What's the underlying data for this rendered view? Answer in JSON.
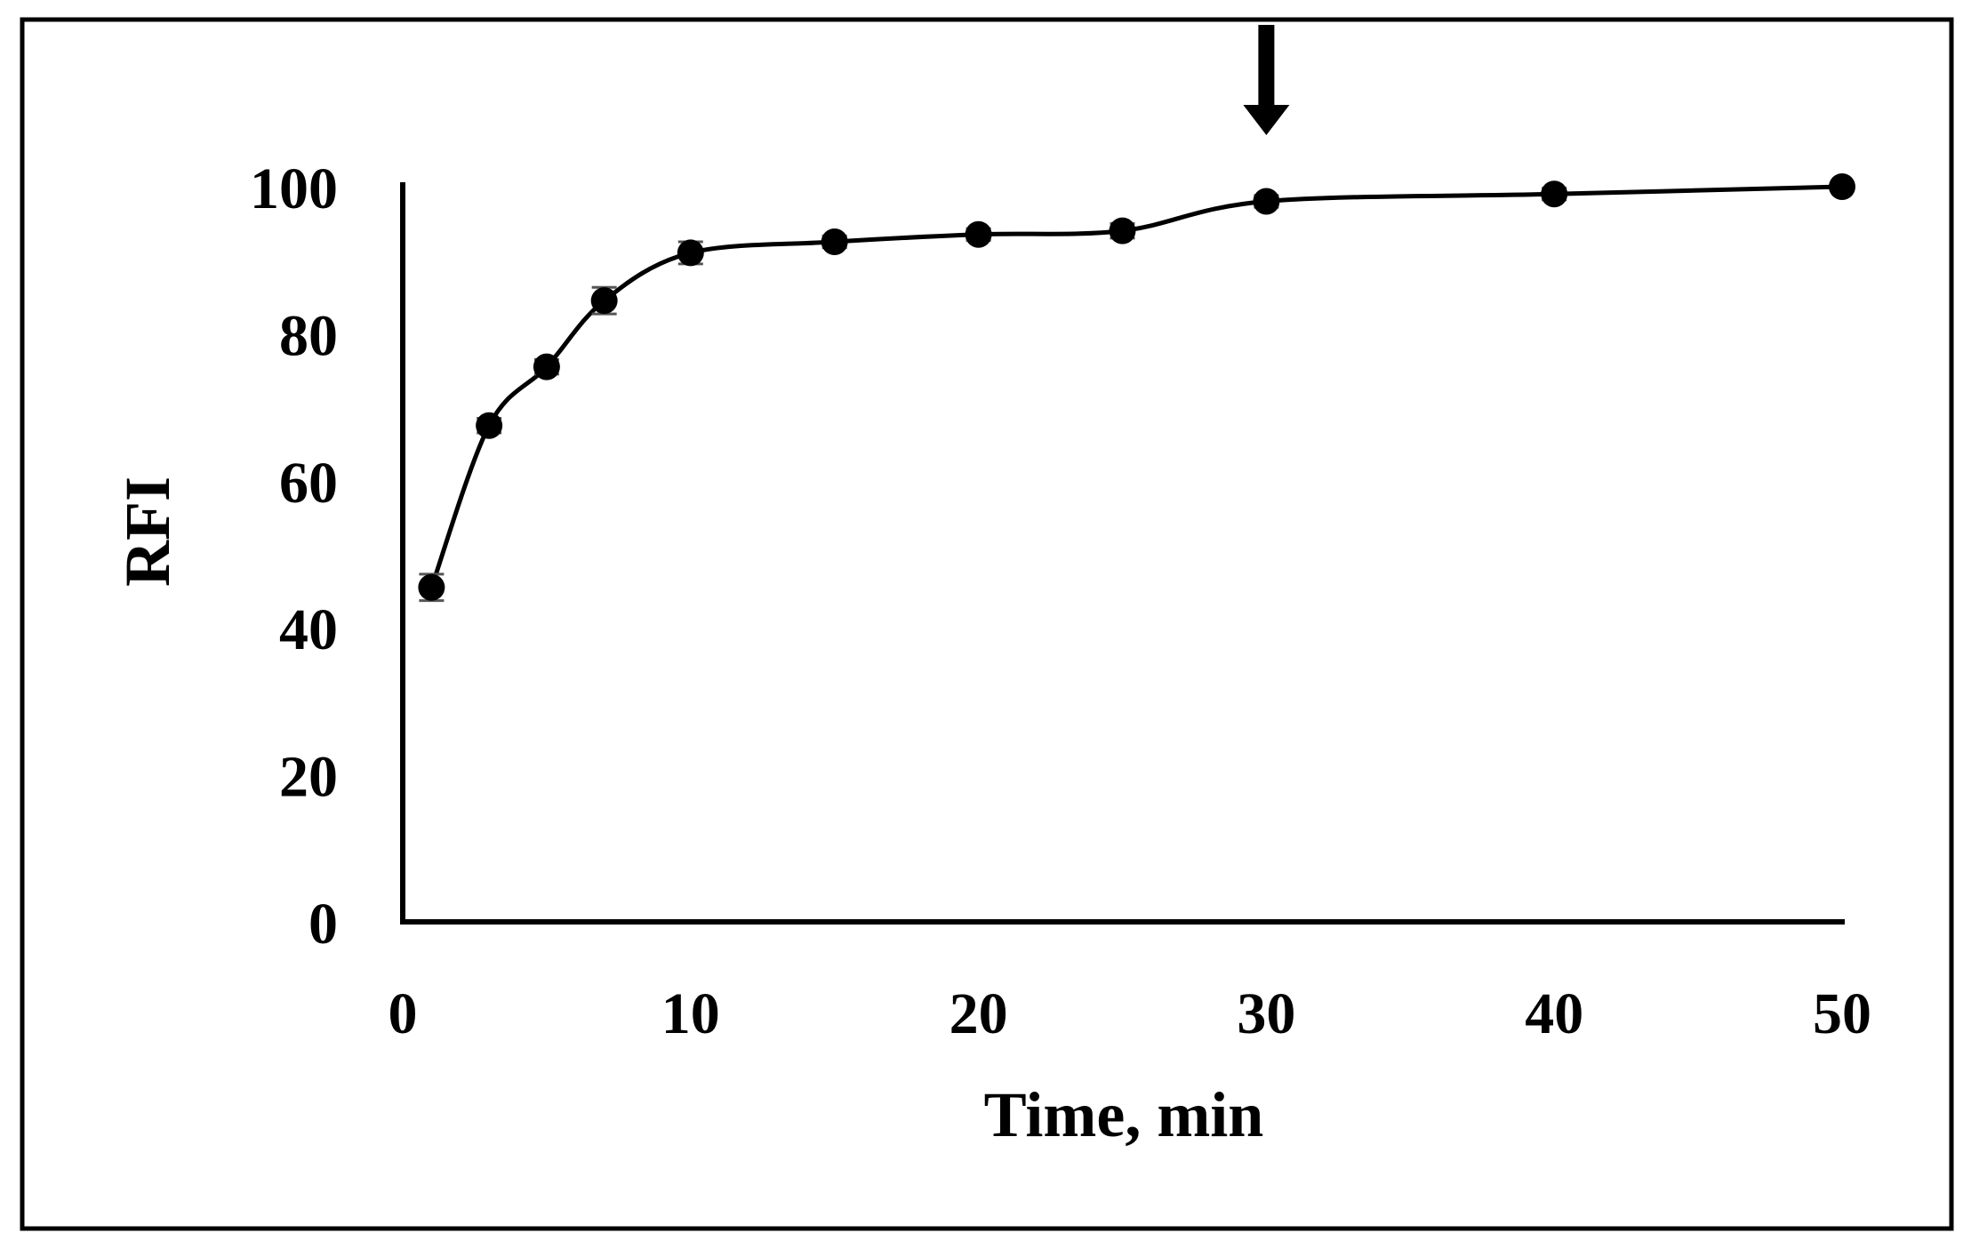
{
  "chart_data": {
    "type": "line",
    "title": "",
    "xlabel": "Time, min",
    "ylabel": "RFI",
    "xlim": [
      0,
      50
    ],
    "ylim": [
      0,
      100
    ],
    "x_ticks": [
      0,
      10,
      20,
      30,
      40,
      50
    ],
    "y_ticks": [
      0,
      20,
      40,
      60,
      80,
      100
    ],
    "grid": false,
    "legend": "none",
    "series": [
      {
        "x": [
          1,
          3,
          5,
          7,
          10,
          15,
          20,
          25,
          30,
          40,
          50
        ],
        "y": [
          45.5,
          67.5,
          75.5,
          84.5,
          91,
          92.5,
          93.5,
          94,
          98,
          99,
          100
        ],
        "err": [
          1.8,
          1.0,
          1.0,
          1.8,
          1.5,
          0.8,
          0.8,
          1.0,
          0.8,
          0.8,
          0.5
        ],
        "color": "#000000",
        "marker": "circle",
        "smooth": true
      }
    ],
    "annotations": [
      {
        "type": "arrow-down",
        "x": 30,
        "color": "#000000"
      }
    ]
  }
}
